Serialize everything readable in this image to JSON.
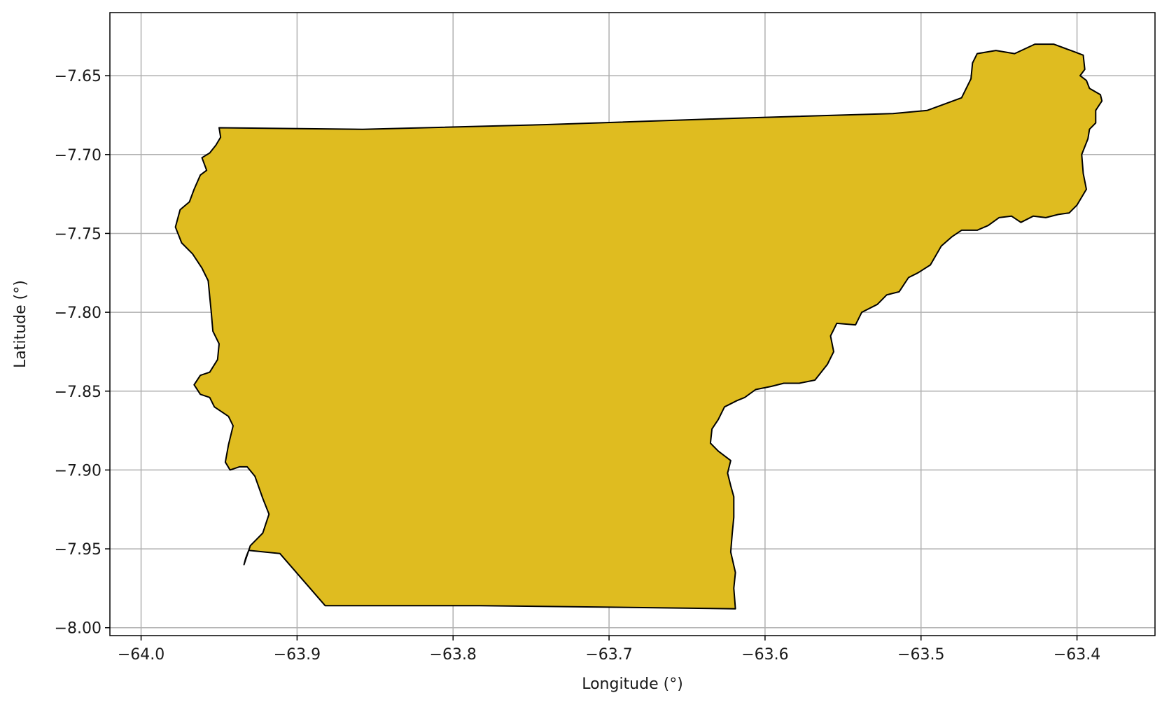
{
  "chart_data": {
    "type": "map",
    "title": "",
    "xlabel": "Longitude (°)",
    "ylabel": "Latitude (°)",
    "xlim": [
      -64.02,
      -63.35
    ],
    "ylim": [
      -8.005,
      -7.61
    ],
    "x_ticks": [
      -64.0,
      -63.9,
      -63.8,
      -63.7,
      -63.6,
      -63.5,
      -63.4
    ],
    "x_tick_labels": [
      "−64.0",
      "−63.9",
      "−63.8",
      "−63.7",
      "−63.6",
      "−63.5",
      "−63.4"
    ],
    "y_ticks": [
      -7.65,
      -7.7,
      -7.75,
      -7.8,
      -7.85,
      -7.9,
      -7.95,
      -8.0
    ],
    "y_tick_labels": [
      "−7.65",
      "−7.70",
      "−7.75",
      "−7.80",
      "−7.85",
      "−7.90",
      "−7.95",
      "−8.00"
    ],
    "grid": true,
    "fill_color": "#dfbc20",
    "edge_color": "#000000",
    "grid_color": "#b0b0b0",
    "polygon": [
      [
        -63.95,
        -7.683
      ],
      [
        -63.858,
        -7.684
      ],
      [
        -63.74,
        -7.681
      ],
      [
        -63.62,
        -7.677
      ],
      [
        -63.518,
        -7.674
      ],
      [
        -63.496,
        -7.672
      ],
      [
        -63.474,
        -7.664
      ],
      [
        -63.468,
        -7.652
      ],
      [
        -63.467,
        -7.642
      ],
      [
        -63.464,
        -7.636
      ],
      [
        -63.452,
        -7.634
      ],
      [
        -63.44,
        -7.636
      ],
      [
        -63.427,
        -7.63
      ],
      [
        -63.415,
        -7.63
      ],
      [
        -63.404,
        -7.634
      ],
      [
        -63.396,
        -7.637
      ],
      [
        -63.395,
        -7.646
      ],
      [
        -63.398,
        -7.65
      ],
      [
        -63.394,
        -7.653
      ],
      [
        -63.392,
        -7.658
      ],
      [
        -63.385,
        -7.662
      ],
      [
        -63.384,
        -7.666
      ],
      [
        -63.388,
        -7.672
      ],
      [
        -63.388,
        -7.68
      ],
      [
        -63.392,
        -7.684
      ],
      [
        -63.393,
        -7.69
      ],
      [
        -63.397,
        -7.7
      ],
      [
        -63.396,
        -7.712
      ],
      [
        -63.394,
        -7.722
      ],
      [
        -63.397,
        -7.727
      ],
      [
        -63.4,
        -7.732
      ],
      [
        -63.405,
        -7.737
      ],
      [
        -63.412,
        -7.738
      ],
      [
        -63.42,
        -7.74
      ],
      [
        -63.428,
        -7.739
      ],
      [
        -63.436,
        -7.743
      ],
      [
        -63.442,
        -7.739
      ],
      [
        -63.45,
        -7.74
      ],
      [
        -63.457,
        -7.745
      ],
      [
        -63.464,
        -7.748
      ],
      [
        -63.474,
        -7.748
      ],
      [
        -63.48,
        -7.752
      ],
      [
        -63.487,
        -7.758
      ],
      [
        -63.494,
        -7.77
      ],
      [
        -63.502,
        -7.775
      ],
      [
        -63.508,
        -7.778
      ],
      [
        -63.514,
        -7.787
      ],
      [
        -63.522,
        -7.789
      ],
      [
        -63.528,
        -7.795
      ],
      [
        -63.538,
        -7.8
      ],
      [
        -63.542,
        -7.808
      ],
      [
        -63.554,
        -7.807
      ],
      [
        -63.558,
        -7.815
      ],
      [
        -63.556,
        -7.825
      ],
      [
        -63.56,
        -7.833
      ],
      [
        -63.568,
        -7.843
      ],
      [
        -63.578,
        -7.845
      ],
      [
        -63.588,
        -7.845
      ],
      [
        -63.596,
        -7.847
      ],
      [
        -63.606,
        -7.849
      ],
      [
        -63.613,
        -7.854
      ],
      [
        -63.618,
        -7.856
      ],
      [
        -63.626,
        -7.86
      ],
      [
        -63.63,
        -7.868
      ],
      [
        -63.634,
        -7.874
      ],
      [
        -63.635,
        -7.883
      ],
      [
        -63.63,
        -7.888
      ],
      [
        -63.622,
        -7.894
      ],
      [
        -63.624,
        -7.902
      ],
      [
        -63.622,
        -7.91
      ],
      [
        -63.62,
        -7.917
      ],
      [
        -63.62,
        -7.93
      ],
      [
        -63.621,
        -7.94
      ],
      [
        -63.622,
        -7.952
      ],
      [
        -63.619,
        -7.965
      ],
      [
        -63.62,
        -7.975
      ],
      [
        -63.619,
        -7.988
      ],
      [
        -63.7,
        -7.987
      ],
      [
        -63.783,
        -7.986
      ],
      [
        -63.882,
        -7.986
      ],
      [
        -63.911,
        -7.953
      ],
      [
        -63.931,
        -7.951
      ],
      [
        -63.933,
        -7.956
      ],
      [
        -63.934,
        -7.96
      ],
      [
        -63.93,
        -7.948
      ],
      [
        -63.926,
        -7.944
      ],
      [
        -63.922,
        -7.94
      ],
      [
        -63.918,
        -7.928
      ],
      [
        -63.922,
        -7.918
      ],
      [
        -63.927,
        -7.904
      ],
      [
        -63.932,
        -7.898
      ],
      [
        -63.937,
        -7.898
      ],
      [
        -63.943,
        -7.9
      ],
      [
        -63.946,
        -7.895
      ],
      [
        -63.944,
        -7.884
      ],
      [
        -63.941,
        -7.872
      ],
      [
        -63.944,
        -7.866
      ],
      [
        -63.95,
        -7.862
      ],
      [
        -63.953,
        -7.86
      ],
      [
        -63.956,
        -7.854
      ],
      [
        -63.962,
        -7.852
      ],
      [
        -63.966,
        -7.846
      ],
      [
        -63.962,
        -7.84
      ],
      [
        -63.956,
        -7.838
      ],
      [
        -63.951,
        -7.83
      ],
      [
        -63.95,
        -7.82
      ],
      [
        -63.954,
        -7.812
      ],
      [
        -63.955,
        -7.8
      ],
      [
        -63.956,
        -7.79
      ],
      [
        -63.957,
        -7.78
      ],
      [
        -63.961,
        -7.772
      ],
      [
        -63.967,
        -7.763
      ],
      [
        -63.974,
        -7.756
      ],
      [
        -63.978,
        -7.746
      ],
      [
        -63.975,
        -7.735
      ],
      [
        -63.969,
        -7.73
      ],
      [
        -63.966,
        -7.722
      ],
      [
        -63.962,
        -7.713
      ],
      [
        -63.958,
        -7.71
      ],
      [
        -63.961,
        -7.702
      ],
      [
        -63.956,
        -7.699
      ],
      [
        -63.952,
        -7.694
      ],
      [
        -63.949,
        -7.689
      ]
    ]
  }
}
